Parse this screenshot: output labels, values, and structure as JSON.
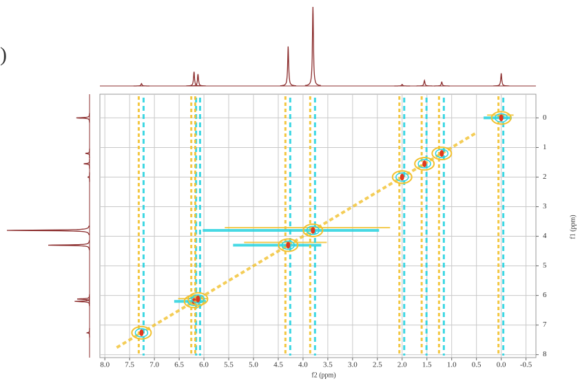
{
  "chart_data": {
    "type": "nmr2d",
    "panel_label": ")",
    "x_label": "f2 (ppm)",
    "y_label": "f1 (ppm)",
    "xlim": [
      8.1,
      -0.7
    ],
    "ylim": [
      -0.8,
      8.1
    ],
    "xticks": [
      {
        "value": 8,
        "label": "8.0"
      },
      7.5,
      {
        "value": 7,
        "label": "7.0"
      },
      6.5,
      {
        "value": 6,
        "label": "6.0"
      },
      5.5,
      {
        "value": 5,
        "label": "5.0"
      },
      4.5,
      {
        "value": 4,
        "label": "4.0"
      },
      3.5,
      {
        "value": 3,
        "label": "3.0"
      },
      2.5,
      {
        "value": 2,
        "label": "2.0"
      },
      1.5,
      {
        "value": 1,
        "label": "1.0"
      },
      0.5,
      {
        "value": 0,
        "label": "0.0"
      },
      -0.5
    ],
    "yticks": [
      0,
      1,
      2,
      3,
      4,
      5,
      6,
      7,
      8
    ],
    "grid": true,
    "peaks": {
      "f2": [
        7.26,
        6.2,
        6.12,
        4.3,
        3.8,
        2.0,
        1.55,
        1.2,
        0.0
      ],
      "f1": [
        7.26,
        6.2,
        6.12,
        4.3,
        3.8,
        2.0,
        1.55,
        1.2,
        0.0
      ],
      "intensity": [
        3,
        18,
        15,
        50,
        100,
        2,
        7,
        5,
        16
      ]
    },
    "colors": {
      "projection": "#8b2c2c",
      "positive": "#f2c12e",
      "negative": "#27d3e0",
      "center": "#e0381e"
    }
  }
}
